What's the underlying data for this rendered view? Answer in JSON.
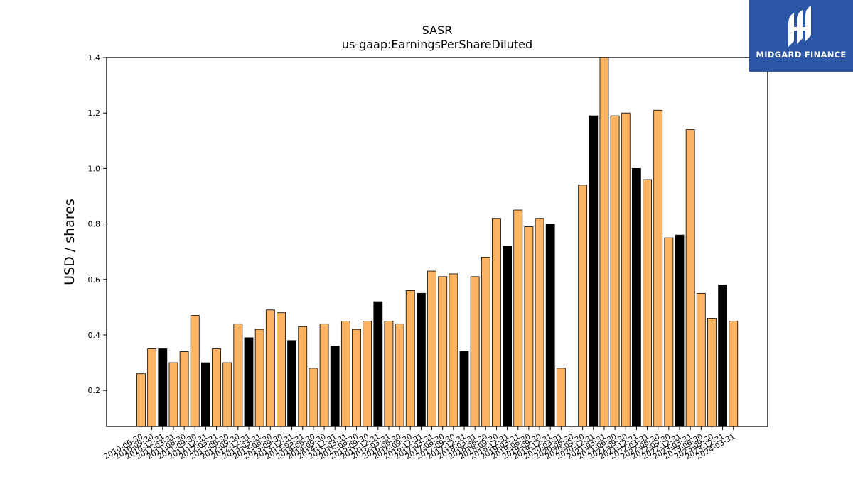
{
  "brand": {
    "name": "MIDGARD FINANCE",
    "bg_color": "#2b56a6",
    "icon": "midgard-logo-icon"
  },
  "colors": {
    "bar_default": "#fdb462",
    "bar_highlight": "#000000",
    "bar_edge": "#000000"
  },
  "chart_data": {
    "type": "bar",
    "title": "SASR",
    "subtitle": "us-gaap:EarningsPerShareDiluted",
    "xlabel": "",
    "ylabel": "USD / shares",
    "ylim": [
      0.07,
      1.4
    ],
    "yticks": [
      0.2,
      0.4,
      0.6,
      0.8,
      1.0,
      1.2,
      1.4
    ],
    "ytick_labels": [
      "0.2",
      "0.4",
      "0.6",
      "0.8",
      "1.0",
      "1.2",
      "1.4"
    ],
    "grid": false,
    "legend": "none",
    "categories": [
      "2010-06-30",
      "2010-09-30",
      "2010-12-31",
      "2011-03-31",
      "2011-06-30",
      "2011-09-30",
      "2011-12-31",
      "2012-03-31",
      "2012-06-30",
      "2012-09-30",
      "2012-12-31",
      "2013-03-31",
      "2013-06-30",
      "2013-09-30",
      "2013-12-31",
      "2014-03-31",
      "2014-06-30",
      "2014-09-30",
      "2014-12-31",
      "2015-03-31",
      "2015-06-30",
      "2015-09-30",
      "2015-12-31",
      "2016-03-31",
      "2016-06-30",
      "2016-09-30",
      "2016-12-31",
      "2017-03-31",
      "2017-06-30",
      "2017-09-30",
      "2017-12-31",
      "2018-03-31",
      "2018-06-30",
      "2018-09-30",
      "2018-12-31",
      "2019-03-31",
      "2019-06-30",
      "2019-09-30",
      "2019-12-31",
      "2020-03-31",
      "2020-06-30",
      "2020-09-30",
      "2020-12-31",
      "2021-03-31",
      "2021-06-30",
      "2021-09-30",
      "2021-12-31",
      "2022-03-31",
      "2022-06-30",
      "2022-09-30",
      "2022-12-31",
      "2023-03-31",
      "2023-06-30",
      "2023-09-30",
      "2023-12-31",
      "2024-03-31"
    ],
    "values": [
      0.26,
      0.35,
      0.35,
      0.3,
      0.34,
      0.47,
      0.3,
      0.35,
      0.3,
      0.44,
      0.39,
      0.42,
      0.49,
      0.48,
      0.38,
      0.43,
      0.28,
      0.44,
      0.36,
      0.45,
      0.42,
      0.45,
      0.52,
      0.45,
      0.44,
      0.56,
      0.55,
      0.63,
      0.61,
      0.62,
      0.34,
      0.61,
      0.68,
      0.82,
      0.72,
      0.85,
      0.79,
      0.82,
      0.8,
      0.28,
      null,
      0.94,
      1.19,
      1.4,
      1.19,
      1.2,
      1.0,
      0.96,
      1.21,
      0.75,
      0.76,
      1.14,
      0.55,
      0.46,
      0.58,
      0.45
    ],
    "highlight": [
      false,
      false,
      true,
      false,
      false,
      false,
      true,
      false,
      false,
      false,
      true,
      false,
      false,
      false,
      true,
      false,
      false,
      false,
      true,
      false,
      false,
      false,
      true,
      false,
      false,
      false,
      true,
      false,
      false,
      false,
      true,
      false,
      false,
      false,
      true,
      false,
      false,
      false,
      true,
      false,
      false,
      false,
      true,
      false,
      false,
      false,
      true,
      false,
      false,
      false,
      true,
      false,
      false,
      false,
      true,
      false
    ]
  }
}
